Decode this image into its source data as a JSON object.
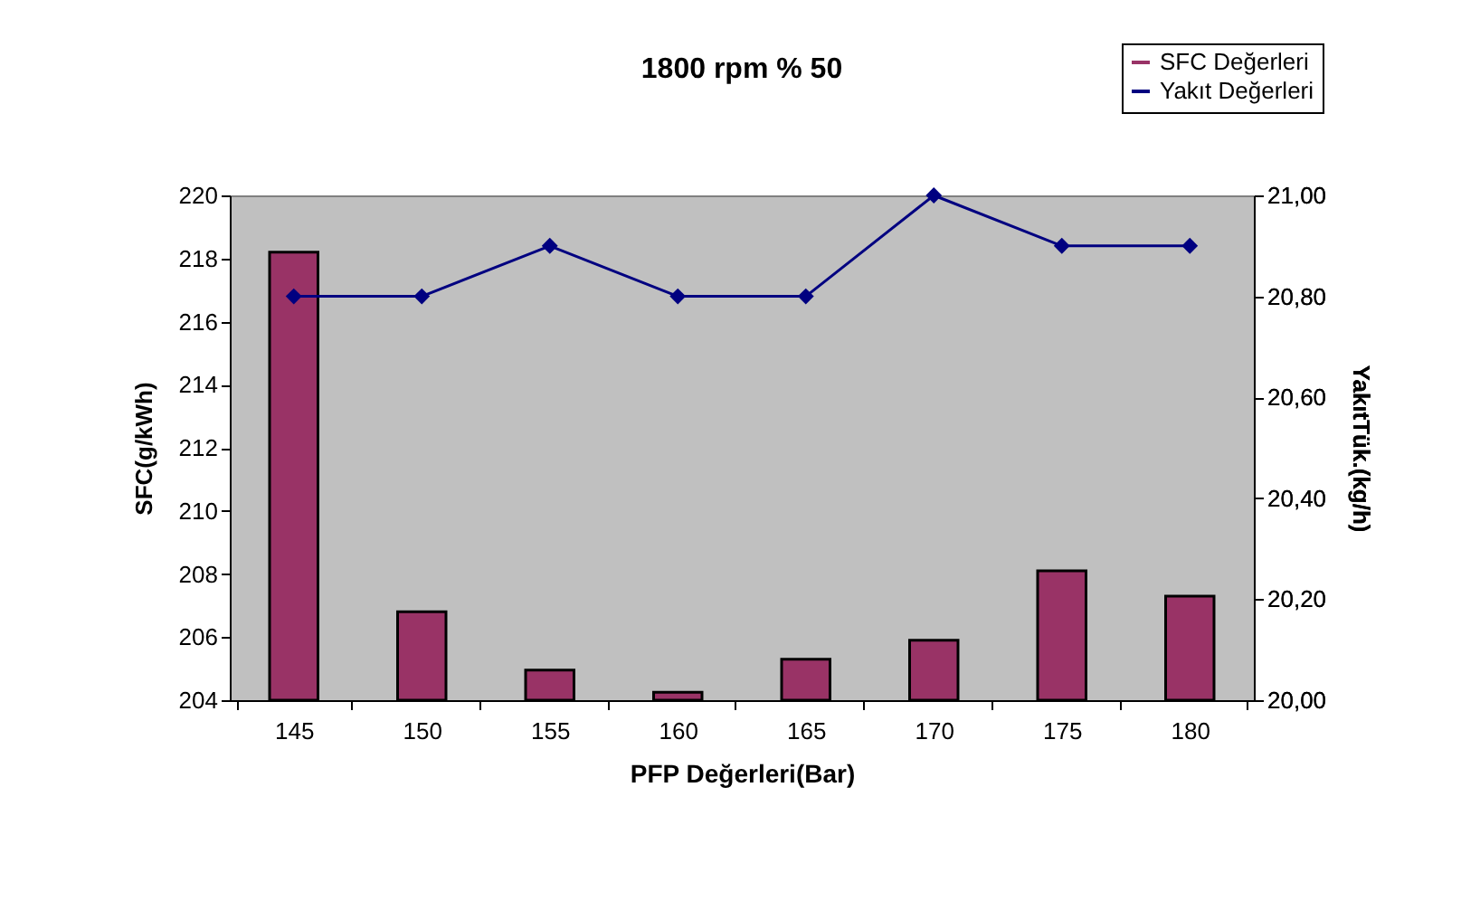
{
  "chart_data": {
    "type": "bar",
    "title": "1800 rpm % 50",
    "xlabel": "PFP Değerleri(Bar)",
    "ylabel": "SFC(g/kWh)",
    "y2label": "YakıtTük.(kg/h)",
    "categories": [
      "145",
      "150",
      "155",
      "160",
      "165",
      "170",
      "175",
      "180"
    ],
    "series": [
      {
        "name": "SFC Değerleri",
        "color": "#993366",
        "values": [
          218.2,
          206.8,
          204.95,
          204.25,
          205.3,
          205.9,
          208.1,
          207.3
        ]
      },
      {
        "name": "Yakıt Değerleri",
        "type": "line",
        "axis": "y2",
        "color": "#000080",
        "marker": "diamond",
        "values": [
          20.8,
          20.8,
          20.9,
          20.8,
          20.8,
          21.0,
          20.9,
          20.9
        ]
      }
    ],
    "ylim": [
      204,
      220
    ],
    "yticks": [
      204,
      206,
      208,
      210,
      212,
      214,
      216,
      218,
      220
    ],
    "y2lim": [
      20.0,
      21.0
    ],
    "y2ticks": [
      {
        "value": 20.0,
        "label": "20,00"
      },
      {
        "value": 20.2,
        "label": "20,20"
      },
      {
        "value": 20.4,
        "label": "20,40"
      },
      {
        "value": 20.6,
        "label": "20,60"
      },
      {
        "value": 20.8,
        "label": "20,80"
      },
      {
        "value": 21.0,
        "label": "21,00"
      }
    ],
    "grid": false,
    "legend": "top right"
  }
}
